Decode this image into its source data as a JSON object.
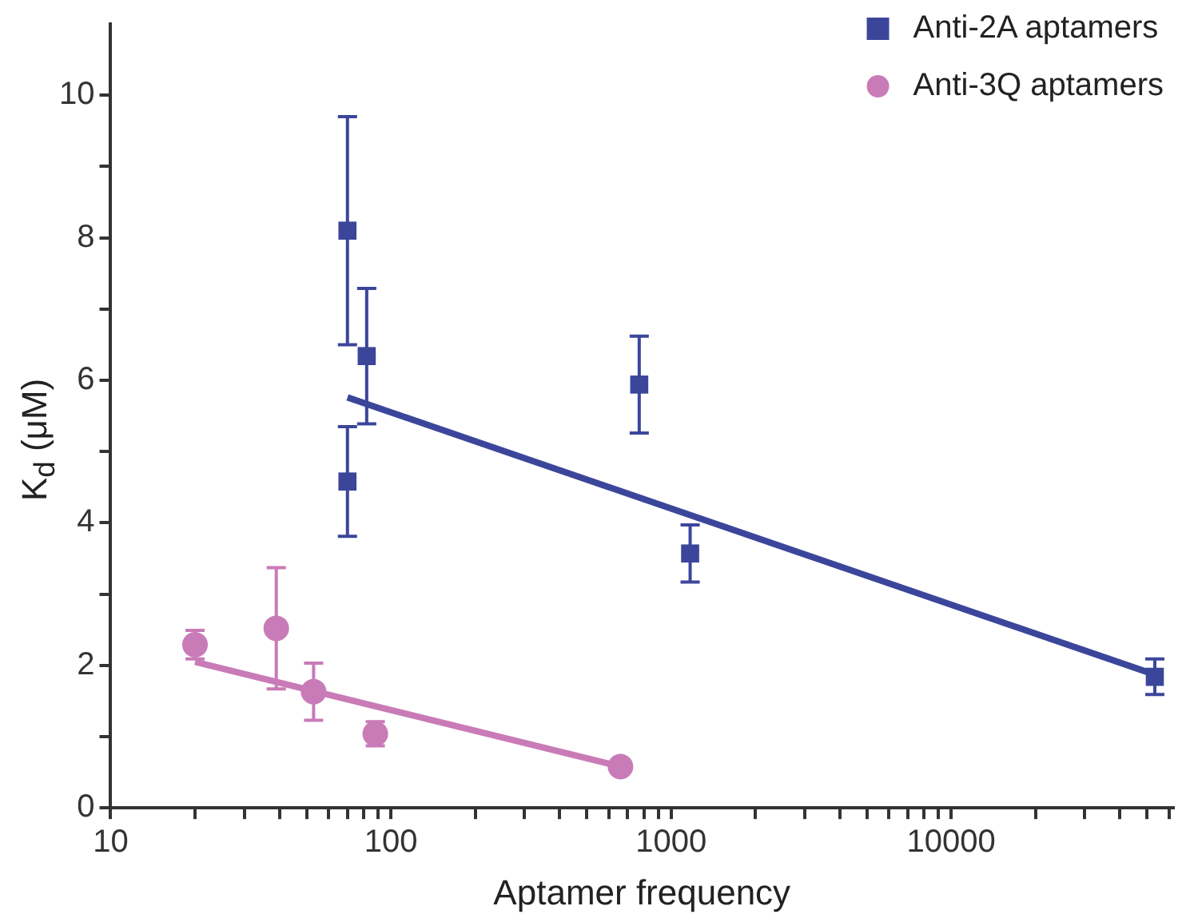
{
  "chart_data": {
    "type": "scatter",
    "xlabel": "Aptamer frequency",
    "ylabel": "K$_{d}$ (μM)",
    "log": "x",
    "grid": false,
    "legend": "top right",
    "xlim": [
      10,
      62000
    ],
    "xticks": [
      10,
      {
        "value": 20,
        "label": null
      },
      {
        "value": 30,
        "label": null
      },
      {
        "value": 40,
        "label": null
      },
      {
        "value": 50,
        "label": null
      },
      {
        "value": 60,
        "label": null
      },
      {
        "value": 70,
        "label": null
      },
      {
        "value": 80,
        "label": null
      },
      {
        "value": 90,
        "label": null
      },
      100,
      {
        "value": 200,
        "label": null
      },
      {
        "value": 300,
        "label": null
      },
      {
        "value": 400,
        "label": null
      },
      {
        "value": 500,
        "label": null
      },
      {
        "value": 600,
        "label": null
      },
      {
        "value": 700,
        "label": null
      },
      {
        "value": 800,
        "label": null
      },
      {
        "value": 900,
        "label": null
      },
      1000,
      {
        "value": 2000,
        "label": null
      },
      {
        "value": 3000,
        "label": null
      },
      {
        "value": 4000,
        "label": null
      },
      {
        "value": 5000,
        "label": null
      },
      {
        "value": 6000,
        "label": null
      },
      {
        "value": 7000,
        "label": null
      },
      {
        "value": 8000,
        "label": null
      },
      {
        "value": 9000,
        "label": null
      },
      10000,
      {
        "value": 20000,
        "label": null
      },
      {
        "value": 30000,
        "label": null
      },
      {
        "value": 40000,
        "label": null
      },
      {
        "value": 50000,
        "label": null
      },
      {
        "value": 60000,
        "label": null
      }
    ],
    "ylim": [
      0,
      11
    ],
    "yticks": [
      0,
      {
        "value": 1,
        "label": null
      },
      2,
      {
        "value": 3,
        "label": null
      },
      4,
      {
        "value": 5,
        "label": null
      },
      6,
      {
        "value": 7,
        "label": null
      },
      8,
      {
        "value": 9,
        "label": null
      },
      10
    ],
    "series": [
      {
        "name": "Anti-2A aptamers",
        "marker": "square",
        "color": "#3b469b",
        "x": [
          70,
          82,
          70,
          770,
          1170,
          53300
        ],
        "values": [
          8.1,
          6.34,
          4.58,
          5.94,
          3.57,
          1.84
        ],
        "errors": [
          1.6,
          0.95,
          0.77,
          0.68,
          0.4,
          0.25
        ]
      },
      {
        "name": "Anti-3Q aptamers",
        "marker": "circle",
        "color": "#c97bb7",
        "x": [
          20,
          39,
          53,
          88,
          660
        ],
        "values": [
          2.29,
          2.52,
          1.63,
          1.04,
          0.58
        ],
        "errors": [
          0.2,
          0.85,
          0.4,
          0.17,
          null
        ]
      },
      {
        "type": "line",
        "marker": "none",
        "line_style": "solid",
        "color": "#3b469b",
        "x": [
          70,
          53300
        ],
        "values": [
          5.76,
          1.87
        ]
      },
      {
        "type": "line",
        "marker": "none",
        "line_style": "solid",
        "color": "#c97bb7",
        "x": [
          20,
          660
        ],
        "values": [
          2.05,
          0.58
        ]
      }
    ]
  }
}
